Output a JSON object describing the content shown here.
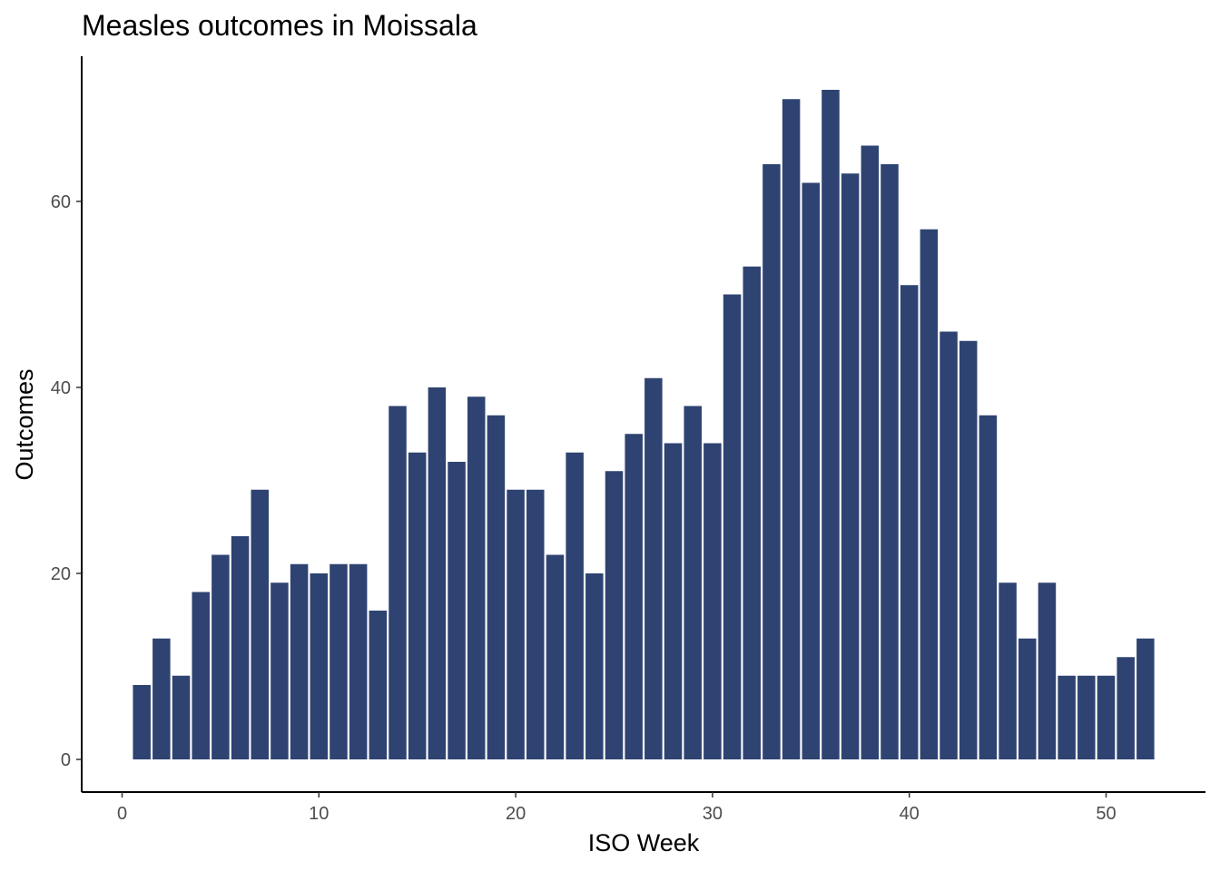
{
  "chart_data": {
    "type": "bar",
    "title": "Measles outcomes in Moissala",
    "xlabel": "ISO Week",
    "ylabel": "Outcomes",
    "xlim": [
      -2,
      52.5
    ],
    "ylim": [
      0,
      75
    ],
    "x_ticks": [
      0,
      10,
      20,
      30,
      40,
      50
    ],
    "y_ticks": [
      0,
      20,
      40,
      60
    ],
    "grid": false,
    "bar_color": "#2e4371",
    "x": [
      1,
      2,
      3,
      4,
      5,
      6,
      7,
      8,
      9,
      10,
      11,
      12,
      13,
      14,
      15,
      16,
      17,
      18,
      19,
      20,
      21,
      22,
      23,
      24,
      25,
      26,
      27,
      28,
      29,
      30,
      31,
      32,
      33,
      34,
      35,
      36,
      37,
      38,
      39,
      40,
      41,
      42,
      43,
      44,
      45,
      46,
      47,
      48,
      49,
      50,
      51,
      52
    ],
    "values": [
      8,
      13,
      9,
      18,
      22,
      24,
      29,
      19,
      21,
      20,
      21,
      21,
      16,
      38,
      33,
      40,
      32,
      39,
      37,
      29,
      29,
      22,
      33,
      20,
      31,
      35,
      41,
      34,
      38,
      34,
      50,
      53,
      64,
      71,
      62,
      72,
      63,
      66,
      64,
      51,
      57,
      46,
      45,
      37,
      19,
      13,
      19,
      9,
      9,
      9,
      11,
      13
    ]
  }
}
